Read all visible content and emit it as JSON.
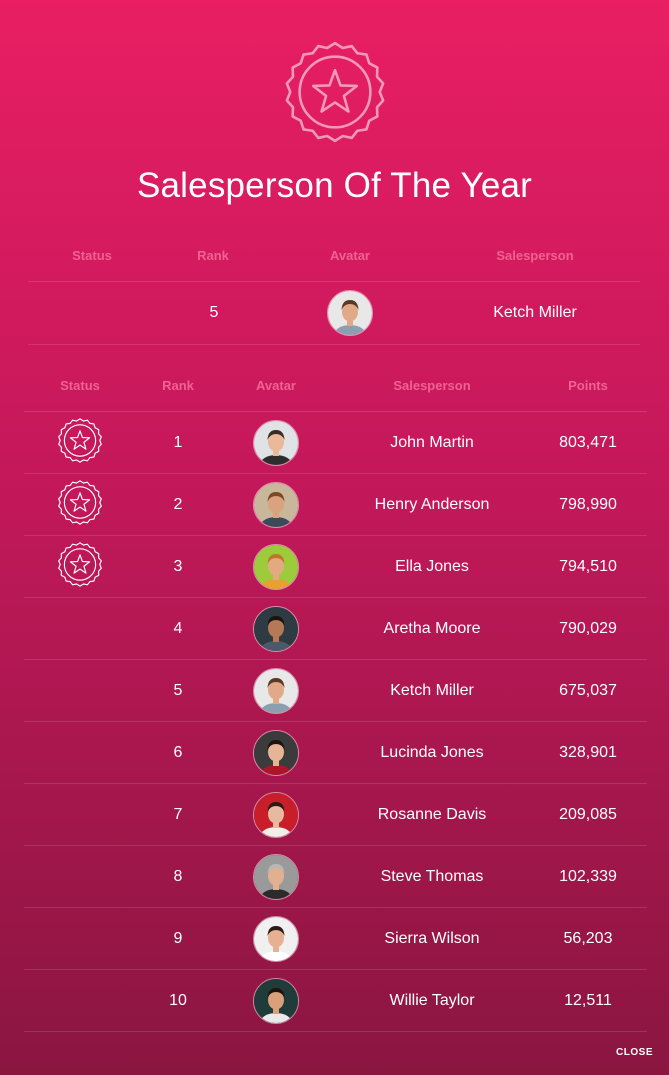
{
  "header": {
    "title": "Salesperson Of The Year",
    "badge_icon": "star-badge-icon"
  },
  "summary": {
    "columns": [
      "Status",
      "Rank",
      "Avatar",
      "Salesperson"
    ],
    "row": {
      "rank": "5",
      "name": "Ketch Miller",
      "avatar": "avatar-ketch"
    }
  },
  "leaderboard": {
    "columns": [
      "Status",
      "Rank",
      "Avatar",
      "Salesperson",
      "Points"
    ],
    "rows": [
      {
        "rank": "1",
        "name": "John Martin",
        "points": "803,471",
        "badge": true
      },
      {
        "rank": "2",
        "name": "Henry Anderson",
        "points": "798,990",
        "badge": true
      },
      {
        "rank": "3",
        "name": "Ella Jones",
        "points": "794,510",
        "badge": true
      },
      {
        "rank": "4",
        "name": "Aretha Moore",
        "points": "790,029",
        "badge": false
      },
      {
        "rank": "5",
        "name": "Ketch Miller",
        "points": "675,037",
        "badge": false
      },
      {
        "rank": "6",
        "name": "Lucinda Jones",
        "points": "328,901",
        "badge": false
      },
      {
        "rank": "7",
        "name": "Rosanne Davis",
        "points": "209,085",
        "badge": false
      },
      {
        "rank": "8",
        "name": "Steve Thomas",
        "points": "102,339",
        "badge": false
      },
      {
        "rank": "9",
        "name": "Sierra Wilson",
        "points": "56,203",
        "badge": false
      },
      {
        "rank": "10",
        "name": "Willie Taylor",
        "points": "12,511",
        "badge": false
      }
    ]
  },
  "footer": {
    "close_label": "CLOSE"
  },
  "colors": {
    "accent": "#e91e63",
    "header_text": "#f06292"
  }
}
